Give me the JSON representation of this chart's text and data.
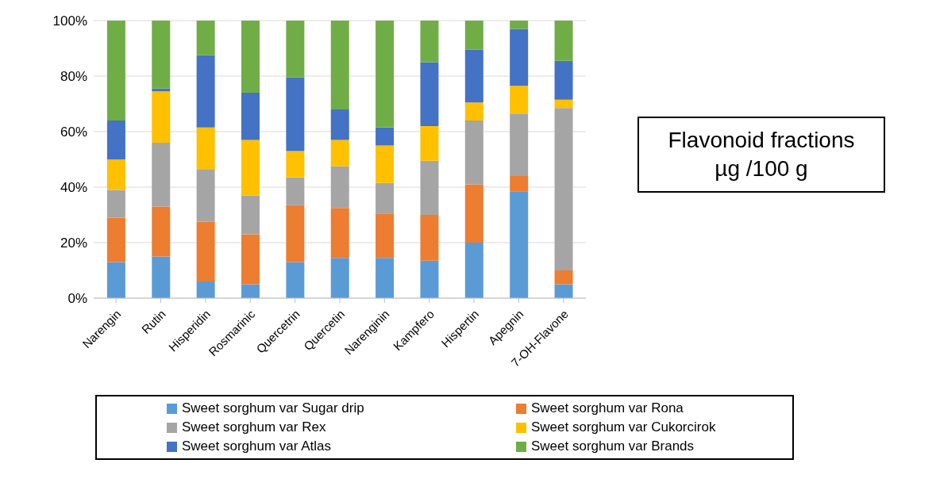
{
  "chart_data": {
    "type": "bar",
    "stacked": true,
    "categories": [
      "Narengin",
      "Rutin",
      "Hisperidin",
      "Rosmarinic",
      "Quercetrin",
      "Quercetin",
      "Narenginin",
      "Kampfero",
      "Hispertin",
      "Apegnin",
      "7-OH-Flavone"
    ],
    "series": [
      {
        "name": "Sweet sorghum var Sugar drip",
        "color": "#5b9bd5",
        "values": [
          13,
          15,
          6,
          5,
          13,
          14.5,
          14.5,
          13.5,
          20,
          38.5,
          5
        ]
      },
      {
        "name": "Sweet sorghum var Rona",
        "color": "#ed7d31",
        "values": [
          16,
          18,
          21.5,
          18,
          20.5,
          18,
          16,
          16.5,
          21,
          5.5,
          5
        ]
      },
      {
        "name": "Sweet sorghum var Rex",
        "color": "#a5a5a5",
        "values": [
          10,
          23,
          19,
          14,
          10,
          15,
          11,
          19.5,
          23,
          22.5,
          58.5
        ]
      },
      {
        "name": "Sweet sorghum var Cukorcirok",
        "color": "#ffc000",
        "values": [
          11,
          18.5,
          15,
          20,
          9.5,
          9.5,
          13.5,
          12.5,
          6.5,
          10,
          3
        ]
      },
      {
        "name": "Sweet sorghum var Atlas",
        "color": "#4472c4",
        "values": [
          14,
          1,
          26,
          17,
          26.5,
          11,
          6.5,
          23,
          19,
          20.5,
          14
        ]
      },
      {
        "name": "Sweet sorghum var Brands",
        "color": "#70ad47",
        "values": [
          36,
          24.5,
          12.5,
          26,
          20.5,
          32,
          38.5,
          15,
          10.5,
          3,
          14.5
        ]
      }
    ],
    "ylim": [
      0,
      100
    ],
    "yticks": [
      {
        "value": 0,
        "label": "0%"
      },
      {
        "value": 20,
        "label": "20%"
      },
      {
        "value": 40,
        "label": "40%"
      },
      {
        "value": 60,
        "label": "60%"
      },
      {
        "value": 80,
        "label": "80%"
      },
      {
        "value": 100,
        "label": "100%"
      }
    ],
    "grid": "y",
    "legend": "bottom",
    "annotations": [
      "Flavonoid fractions\nµg /100 g"
    ]
  }
}
